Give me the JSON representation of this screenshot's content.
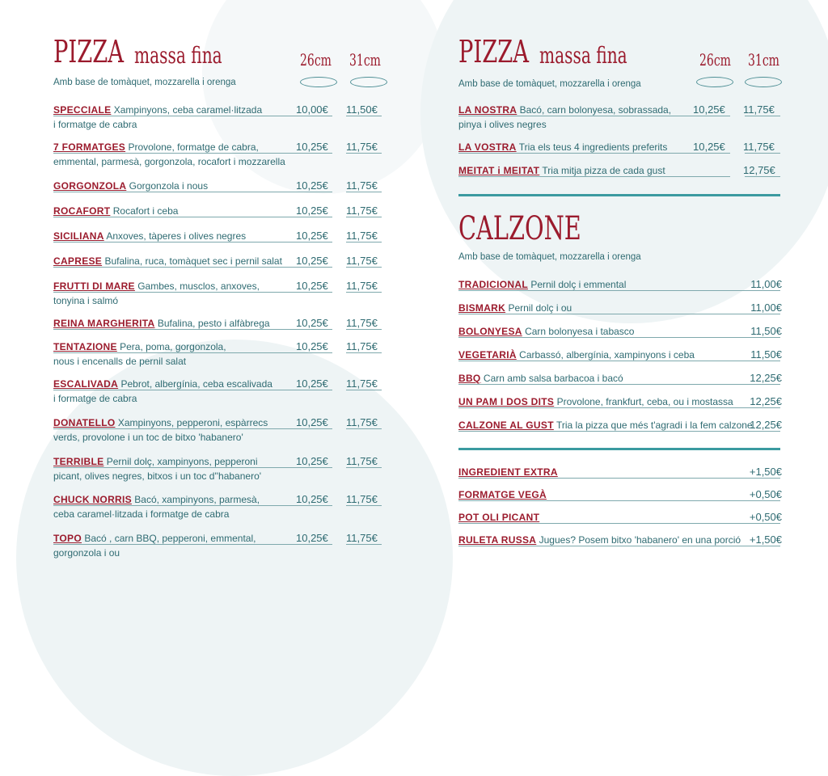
{
  "left": {
    "title_big": "PIZZA",
    "title_small": "massa fina",
    "size1": "26cm",
    "size2": "31cm",
    "subtitle": "Amb base de tomàquet, mozzarella i orenga",
    "items": [
      {
        "name": "SPECCIALE",
        "desc": "Xampinyons, ceba caramel·litzada",
        "desc2": "i formatge de cabra",
        "p1": "10,00€",
        "p2": "11,50€"
      },
      {
        "name": "7 FORMATGES",
        "desc": "Provolone, formatge de cabra,",
        "desc2": "emmental, parmesà, gorgonzola, rocafort i mozzarella",
        "p1": "10,25€",
        "p2": "11,75€"
      },
      {
        "name": "GORGONZOLA",
        "desc": "Gorgonzola i nous",
        "desc2": "",
        "p1": "10,25€",
        "p2": "11,75€"
      },
      {
        "name": "ROCAFORT",
        "desc": "Rocafort i ceba",
        "desc2": "",
        "p1": "10,25€",
        "p2": "11,75€"
      },
      {
        "name": "SICILIANA",
        "desc": "Anxoves, tàperes i olives negres",
        "desc2": "",
        "p1": "10,25€",
        "p2": "11,75€"
      },
      {
        "name": "CAPRESE",
        "desc": "Bufalina, ruca, tomàquet sec i pernil salat",
        "desc2": "",
        "p1": "10,25€",
        "p2": "11,75€"
      },
      {
        "name": "FRUTTI DI MARE",
        "desc": "Gambes, musclos, anxoves,",
        "desc2": "tonyina i salmó",
        "p1": "10,25€",
        "p2": "11,75€"
      },
      {
        "name": "REINA MARGHERITA",
        "desc": "Bufalina, pesto i alfàbrega",
        "desc2": "",
        "p1": "10,25€",
        "p2": "11,75€"
      },
      {
        "name": "TENTAZIONE",
        "desc": "Pera, poma, gorgonzola,",
        "desc2": "nous i encenalls de pernil salat",
        "p1": "10,25€",
        "p2": "11,75€"
      },
      {
        "name": "ESCALIVADA",
        "desc": "Pebrot, albergínia, ceba escalivada",
        "desc2": "i formatge de cabra",
        "p1": "10,25€",
        "p2": "11,75€"
      },
      {
        "name": "DONATELLO",
        "desc": "Xampinyons, pepperoni, espàrrecs",
        "desc2": "verds, provolone i un toc de bitxo 'habanero'",
        "p1": "10,25€",
        "p2": "11,75€"
      },
      {
        "name": "TERRIBLE",
        "desc": "Pernil dolç, xampinyons, pepperoni",
        "desc2": "picant, olives negres, bitxos i un toc d''habanero'",
        "p1": "10,25€",
        "p2": "11,75€"
      },
      {
        "name": "CHUCK NORRIS",
        "desc": "Bacó, xampinyons, parmesà,",
        "desc2": "ceba caramel·litzada i formatge de cabra",
        "p1": "10,25€",
        "p2": "11,75€"
      },
      {
        "name": "TOPO",
        "desc": "Bacó , carn BBQ, pepperoni, emmental,",
        "desc2": "gorgonzola i ou",
        "p1": "10,25€",
        "p2": "11,75€"
      }
    ]
  },
  "right": {
    "title_big": "PIZZA",
    "title_small": "massa fina",
    "size1": "26cm",
    "size2": "31cm",
    "subtitle": "Amb base de tomàquet, mozzarella i orenga",
    "pizzas": [
      {
        "name": "LA NOSTRA",
        "desc": "Bacó, carn bolonyesa, sobrassada,",
        "desc2": "pinya i olives negres",
        "p1": "10,25€",
        "p2": "11,75€"
      },
      {
        "name": "LA VOSTRA",
        "desc": "Tria els teus 4 ingredients preferits",
        "desc2": "",
        "p1": "10,25€",
        "p2": "11,75€"
      },
      {
        "name": "MEITAT i MEITAT",
        "desc": "Tria mitja pizza de cada gust",
        "desc2": "",
        "p1": "",
        "p2": "12,75€"
      }
    ],
    "calzone_title": "CALZONE",
    "calzone_subtitle": "Amb base de tomàquet, mozzarella i orenga",
    "calzones": [
      {
        "name": "TRADICIONAL",
        "desc": "Pernil dolç i emmental",
        "price": "11,00€"
      },
      {
        "name": "BISMARK",
        "desc": "Pernil dolç i ou",
        "price": "11,00€"
      },
      {
        "name": "BOLONYESA",
        "desc": "Carn bolonyesa i tabasco",
        "price": "11,50€"
      },
      {
        "name": "VEGETARIÀ",
        "desc": "Carbassó, albergínia, xampinyons i ceba",
        "price": "11,50€"
      },
      {
        "name": "BBQ",
        "desc": "Carn amb salsa barbacoa i bacó",
        "price": "12,25€"
      },
      {
        "name": "UN PAM I DOS DITS",
        "desc": "Provolone, frankfurt, ceba, ou i mostassa",
        "price": "12,25€"
      },
      {
        "name": "CALZONE AL GUST",
        "desc": "Tria la pizza que més t'agradi i la fem calzone",
        "price": "12,25€"
      }
    ],
    "extras": [
      {
        "name": "INGREDIENT EXTRA",
        "desc": "",
        "price": "+1,50€"
      },
      {
        "name": "FORMATGE VEGÀ",
        "desc": "",
        "price": "+0,50€"
      },
      {
        "name": "POT OLI PICANT",
        "desc": "",
        "price": "+0,50€"
      },
      {
        "name": "RULETA RUSSA",
        "desc": "Jugues? Posem bitxo 'habanero' en una porció",
        "price": "+1,50€"
      }
    ]
  },
  "colors": {
    "title": "#9b1b2d",
    "text": "#2f6b72",
    "accent": "#3b9aa0",
    "background_blob": "#eef4f5"
  }
}
